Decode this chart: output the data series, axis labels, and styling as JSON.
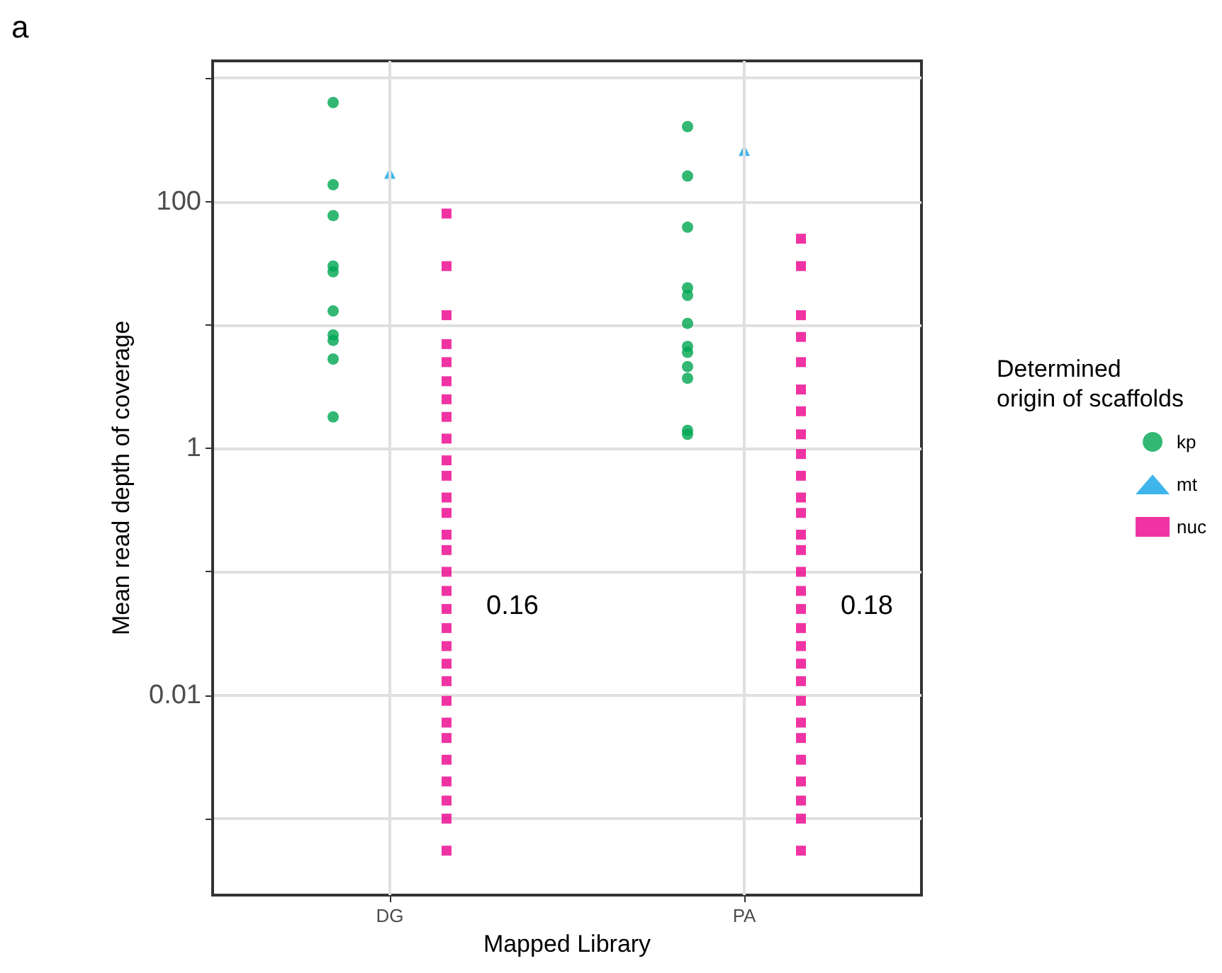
{
  "chart_data": {
    "type": "scatter",
    "xlabel": "Mapped Library",
    "ylabel": "Mean read depth of coverage",
    "legend_title": "Determined\norigin of scaffolds",
    "legend": "right",
    "grid": true,
    "log": "y",
    "categories": [
      "DG",
      "PA"
    ],
    "ylim": [
      0.00024,
      1380
    ],
    "yticks": [
      {
        "value": 0.001,
        "label": null
      },
      0.01,
      {
        "value": 0.1,
        "label": null
      },
      1,
      {
        "value": 10,
        "label": null
      },
      100,
      {
        "value": 1000,
        "label": null
      }
    ],
    "annotations": [
      "a",
      "0.16",
      "0.18"
    ],
    "series": [
      {
        "name": "kp",
        "color": "#00a651",
        "marker": "circle",
        "x": [
          "DG",
          "DG",
          "DG",
          "DG",
          "DG",
          "DG",
          "DG",
          "DG",
          "DG",
          "DG",
          "PA",
          "PA",
          "PA",
          "PA",
          "PA",
          "PA",
          "PA",
          "PA",
          "PA",
          "PA",
          "PA",
          "PA"
        ],
        "values": [
          635,
          137,
          77,
          30,
          27,
          13,
          8.3,
          7.5,
          5.3,
          1.8,
          405,
          161,
          62,
          20,
          17.4,
          10.3,
          6.7,
          6.0,
          4.6,
          3.7,
          1.4,
          1.3
        ]
      },
      {
        "name": "mt",
        "color": "#0fa3e6",
        "marker": "triangle",
        "x": [
          "DG",
          "PA"
        ],
        "values": [
          170,
          260
        ]
      },
      {
        "name": "nuc",
        "color": "#ec008c",
        "marker": "square",
        "x": [
          "DG",
          "DG",
          "DG",
          "DG",
          "DG",
          "DG",
          "DG",
          "DG",
          "DG",
          "DG",
          "DG",
          "DG",
          "DG",
          "DG",
          "DG",
          "DG",
          "DG",
          "DG",
          "DG",
          "DG",
          "DG",
          "DG",
          "DG",
          "DG",
          "DG",
          "DG",
          "DG",
          "DG",
          "DG",
          "DG",
          "PA",
          "PA",
          "PA",
          "PA",
          "PA",
          "PA",
          "PA",
          "PA",
          "PA",
          "PA",
          "PA",
          "PA",
          "PA",
          "PA",
          "PA",
          "PA",
          "PA",
          "PA",
          "PA",
          "PA",
          "PA",
          "PA",
          "PA",
          "PA",
          "PA",
          "PA",
          "PA",
          "PA",
          "PA"
        ],
        "values": [
          80,
          30,
          12,
          7,
          5,
          3.5,
          2.5,
          1.8,
          1.2,
          0.8,
          0.6,
          0.4,
          0.3,
          0.2,
          0.15,
          0.1,
          0.07,
          0.05,
          0.035,
          0.025,
          0.018,
          0.013,
          0.009,
          0.006,
          0.0045,
          0.003,
          0.002,
          0.0014,
          0.001,
          0.00055,
          50,
          30,
          12,
          8,
          5,
          3,
          2,
          1.3,
          0.9,
          0.6,
          0.4,
          0.3,
          0.2,
          0.15,
          0.1,
          0.07,
          0.05,
          0.035,
          0.025,
          0.018,
          0.013,
          0.009,
          0.006,
          0.0045,
          0.003,
          0.002,
          0.0014,
          0.001,
          0.00055
        ]
      }
    ]
  }
}
